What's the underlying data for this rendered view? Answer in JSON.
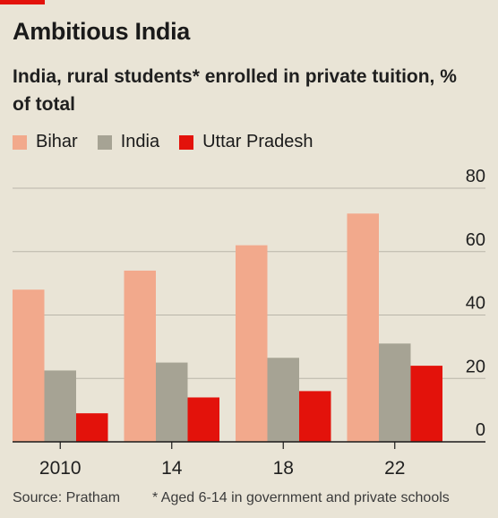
{
  "header": {
    "title": "Ambitious India",
    "subtitle": "India, rural students* enrolled in private tuition, % of total"
  },
  "footer": {
    "source": "Source: Pratham",
    "footnote": "* Aged 6-14 in government and private schools"
  },
  "colors": {
    "bihar": "#f2a98c",
    "india": "#a6a394",
    "uttar_pradesh": "#e3120b",
    "accent": "#e3120b"
  },
  "chart_data": {
    "type": "bar",
    "categories": [
      "2010",
      "14",
      "18",
      "22"
    ],
    "series": [
      {
        "name": "Bihar",
        "values": [
          48,
          54,
          62,
          72
        ]
      },
      {
        "name": "India",
        "values": [
          22.5,
          25,
          26.5,
          31
        ]
      },
      {
        "name": "Uttar Pradesh",
        "values": [
          9,
          14,
          16,
          24
        ]
      }
    ],
    "ylim": [
      0,
      80
    ],
    "yticks": [
      0,
      20,
      40,
      60,
      80
    ],
    "title": "India, rural students* enrolled in private tuition, % of total",
    "xlabel": "",
    "ylabel": "",
    "grid": true,
    "legend_position": "top-left",
    "y_axis_position": "right"
  }
}
